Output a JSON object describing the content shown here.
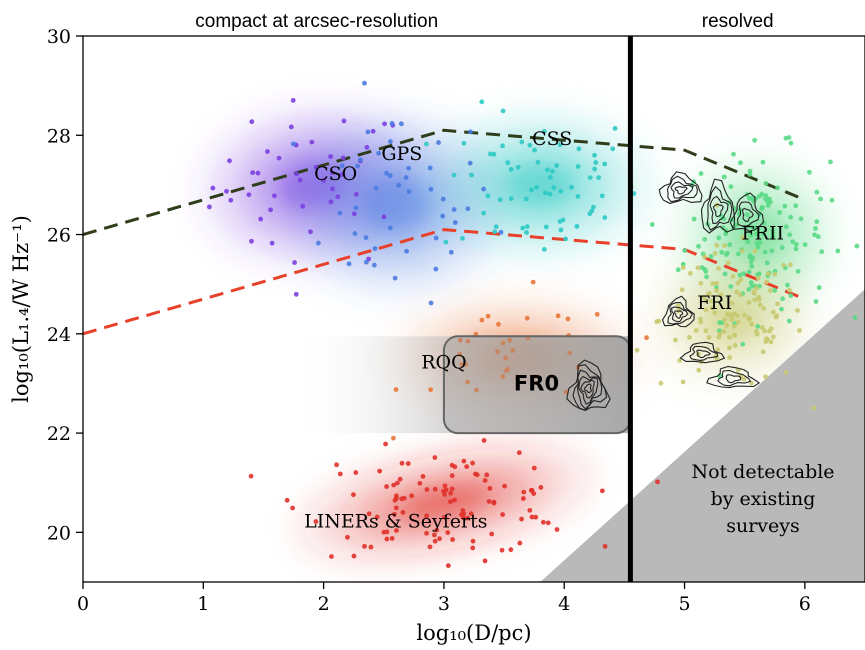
{
  "chart_data": {
    "type": "scatter",
    "title": "",
    "xlabel": "log₁₀(D/pc)",
    "ylabel": "log₁₀(L₁.₄/W Hz⁻¹)",
    "xlim": [
      0,
      6.5
    ],
    "ylim": [
      19,
      30
    ],
    "x_ticks": [
      "0",
      "1",
      "2",
      "3",
      "4",
      "5",
      "6"
    ],
    "y_ticks": [
      "20",
      "22",
      "24",
      "26",
      "28",
      "30"
    ],
    "grid": false,
    "regions": {
      "compact": "compact at arcsec-resolution",
      "resolved": "resolved",
      "divider_x": 4.55
    },
    "not_detectable": {
      "lines": [
        "Not detectable",
        "by existing",
        "surveys"
      ],
      "polygon": [
        [
          3.8,
          19
        ],
        [
          6.5,
          19
        ],
        [
          6.5,
          24.9
        ]
      ]
    },
    "fr0_box": {
      "label": "FR0",
      "x": [
        3.0,
        4.55
      ],
      "y": [
        22.0,
        23.95
      ]
    },
    "rqq_band": {
      "x": [
        1.7,
        4.55
      ],
      "y": [
        22.0,
        23.95
      ]
    },
    "dashed_lines": [
      {
        "name": "upper",
        "color": "#2f3d1a",
        "points": [
          [
            0,
            26.0
          ],
          [
            3.0,
            28.1
          ],
          [
            5.0,
            27.7
          ],
          [
            6.0,
            26.7
          ]
        ]
      },
      {
        "name": "lower",
        "color": "#e8402a",
        "points": [
          [
            0,
            24.0
          ],
          [
            3.0,
            26.1
          ],
          [
            5.0,
            25.7
          ],
          [
            6.0,
            24.7
          ]
        ]
      }
    ],
    "series": [
      {
        "name": "CSO",
        "label_pos": [
          2.1,
          27.1
        ],
        "color": "#7b3fe0",
        "center": [
          1.9,
          27.0
        ],
        "spread": [
          0.55,
          1.2
        ],
        "n": 45
      },
      {
        "name": "GPS",
        "label_pos": [
          2.65,
          27.5
        ],
        "color": "#4a7be0",
        "center": [
          2.6,
          26.6
        ],
        "spread": [
          0.55,
          1.4
        ],
        "n": 45
      },
      {
        "name": "CSS",
        "label_pos": [
          3.9,
          27.8
        ],
        "color": "#2ec9c4",
        "center": [
          3.8,
          27.0
        ],
        "spread": [
          0.55,
          1.1
        ],
        "n": 65
      },
      {
        "name": "FRII",
        "label_pos": [
          5.65,
          25.9
        ],
        "color": "#5ad986",
        "center": [
          5.6,
          26.0
        ],
        "spread": [
          0.4,
          1.2
        ],
        "n": 150
      },
      {
        "name": "FRI",
        "label_pos": [
          5.25,
          24.5
        ],
        "color": "#c8c970",
        "center": [
          5.4,
          24.3
        ],
        "spread": [
          0.4,
          1.0
        ],
        "n": 120
      },
      {
        "name": "RQQ",
        "label_pos": [
          3.0,
          23.3
        ],
        "color": "#e8773a",
        "center": [
          3.6,
          23.5
        ],
        "spread": [
          0.6,
          0.9
        ],
        "n": 35
      },
      {
        "name": "LINERs & Seyferts",
        "label_pos": [
          2.6,
          20.1
        ],
        "color": "#e0312a",
        "center": [
          3.0,
          20.6
        ],
        "spread": [
          0.75,
          0.75
        ],
        "n": 110
      }
    ]
  }
}
